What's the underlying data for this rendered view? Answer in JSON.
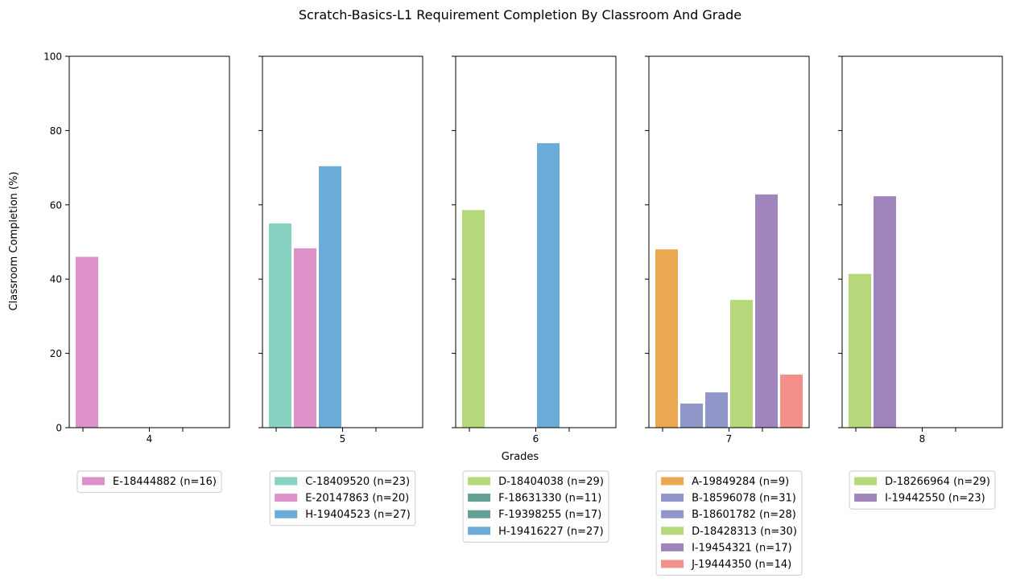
{
  "chart_data": {
    "type": "bar",
    "title": "Scratch-Basics-L1 Requirement Completion By Classroom And Grade",
    "xlabel": "Grades",
    "ylabel": "Classroom Completion (%)",
    "ylim": [
      0,
      100
    ],
    "yticks": [
      "0",
      "20",
      "40",
      "60",
      "80",
      "100"
    ],
    "grid": false,
    "legend_placement": "below each panel",
    "panels": [
      {
        "grade": "4",
        "series": [
          {
            "name": "E-18444882 (n=16)",
            "value": 46,
            "color": "#dc91c9"
          }
        ]
      },
      {
        "grade": "5",
        "series": [
          {
            "name": "C-18409520 (n=23)",
            "value": 55,
            "color": "#88d2c1"
          },
          {
            "name": "E-20147863 (n=20)",
            "value": 48.3,
            "color": "#dc91c9"
          },
          {
            "name": "H-19404523 (n=27)",
            "value": 70.4,
            "color": "#6babd7"
          }
        ]
      },
      {
        "grade": "6",
        "series": [
          {
            "name": "D-18404038 (n=29)",
            "value": 58.6,
            "color": "#b6d87b"
          },
          {
            "name": "F-18631330 (n=11)",
            "value": 0,
            "color": "#639f93"
          },
          {
            "name": "F-19398255 (n=17)",
            "value": 0,
            "color": "#639f93"
          },
          {
            "name": "H-19416227 (n=27)",
            "value": 76.6,
            "color": "#6babd7"
          }
        ]
      },
      {
        "grade": "7",
        "series": [
          {
            "name": "A-19849284 (n=9)",
            "value": 48,
            "color": "#eaa951"
          },
          {
            "name": "B-18596078 (n=31)",
            "value": 6.5,
            "color": "#9096c8"
          },
          {
            "name": "B-18601782 (n=28)",
            "value": 9.5,
            "color": "#9096c8"
          },
          {
            "name": "D-18428313 (n=30)",
            "value": 34.4,
            "color": "#b6d87b"
          },
          {
            "name": "I-19454321 (n=17)",
            "value": 62.8,
            "color": "#a085bd"
          },
          {
            "name": "J-19444350 (n=14)",
            "value": 14.3,
            "color": "#f3908a"
          }
        ]
      },
      {
        "grade": "8",
        "series": [
          {
            "name": "D-18266964 (n=29)",
            "value": 41.4,
            "color": "#b6d87b"
          },
          {
            "name": "I-19442550 (n=23)",
            "value": 62.3,
            "color": "#a085bd"
          }
        ]
      }
    ]
  }
}
